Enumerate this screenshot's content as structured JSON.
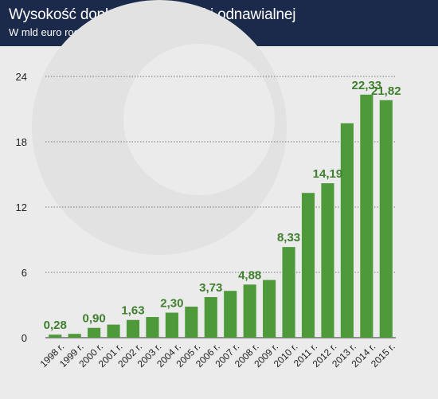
{
  "header": {
    "title": "Wysokość dopłat do energetyki odnawialnej",
    "subtitle": "W mld euro rocznie"
  },
  "colors": {
    "header_bg": "#1b2a4a",
    "bar": "#4e9a3a",
    "label": "#3f7f2e",
    "background": "#ebebeb"
  },
  "chart_data": {
    "type": "bar",
    "title": "Wysokość dopłat do energetyki odnawialnej",
    "subtitle": "W mld euro rocznie",
    "categories": [
      "1998 r.",
      "1999 r.",
      "2000 r.",
      "2001 r.",
      "2002 r.",
      "2003 r.",
      "2004 r.",
      "2005 r.",
      "2006 r.",
      "2007 r.",
      "2008 r.",
      "2009 r.",
      "2010 r.",
      "2011 r.",
      "2012 r.",
      "2013 r.",
      "2014 r.",
      "2015 r."
    ],
    "values": [
      0.28,
      0.35,
      0.9,
      1.2,
      1.63,
      1.9,
      2.3,
      2.85,
      3.73,
      4.3,
      4.88,
      5.3,
      8.33,
      13.3,
      14.19,
      19.7,
      22.33,
      21.82
    ],
    "data_labels": [
      "0,28",
      "",
      "0,90",
      "",
      "1,63",
      "",
      "2,30",
      "",
      "3,73",
      "",
      "4,88",
      "",
      "8,33",
      "",
      "14,19",
      "",
      "22,33",
      "21,82"
    ],
    "y_ticks": [
      "0",
      "6",
      "12",
      "18",
      "24"
    ],
    "ylim": [
      0,
      24
    ],
    "grid": true
  }
}
